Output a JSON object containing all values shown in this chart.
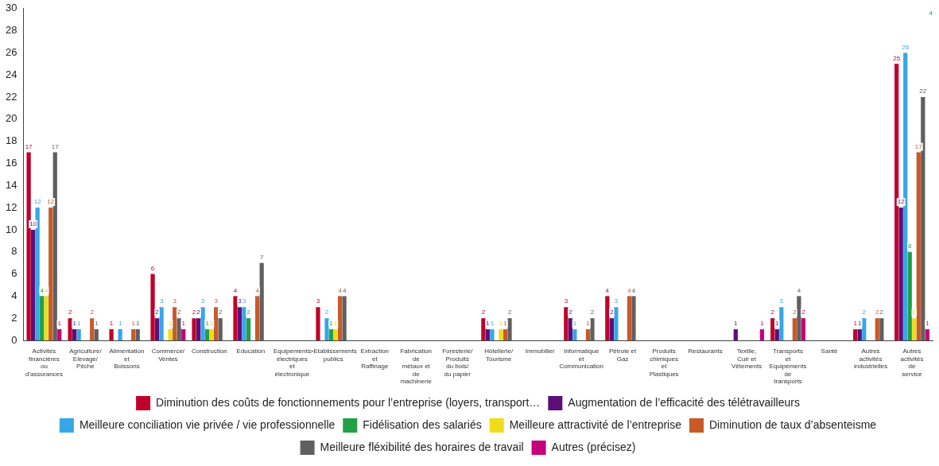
{
  "chart_data": {
    "type": "bar",
    "categories": [
      "Activités financières ou d’assurances",
      "Agriculture/ Elevage/ Pêche",
      "Alimentation et Boissons",
      "Commerce/ Ventes",
      "Construction",
      "Education",
      "Equipements électriques et électronique",
      ">Etablissements publics",
      "Extraction et Raffinage",
      "Fabrication de métaux et de machinerie",
      "Foresterie/ Produits du bois/ du papier",
      "Hôtellerie/ Tourisme",
      "Immobilier",
      "Informatique et Communication",
      "Pétrole et Gaz",
      "Produits chimiques et Plastiques",
      "Restaurants",
      "Textile, Cuir et Vêtements",
      "Transports et Equipements de transports",
      "Santé",
      "Autres activités industrielles",
      "Autres activités de service"
    ],
    "series": [
      {
        "name": "Diminution des coûts de fonctionnements pour l’entreprise (loyers, transport…",
        "color": "#c0002a",
        "values": [
          17,
          2,
          1,
          6,
          2,
          4,
          null,
          3,
          null,
          null,
          null,
          2,
          null,
          3,
          4,
          null,
          null,
          null,
          2,
          null,
          1,
          25
        ]
      },
      {
        "name": "Augmentation de l’efficacité des télétravailleurs",
        "color": "#5c0f7a",
        "values": [
          10,
          1,
          null,
          2,
          2,
          3,
          null,
          null,
          null,
          null,
          null,
          1,
          null,
          2,
          2,
          null,
          null,
          1,
          1,
          null,
          1,
          12
        ]
      },
      {
        "name": "Meilleure conciliation vie privée / vie professionnelle",
        "color": "#35a7e8",
        "values": [
          12,
          1,
          1,
          3,
          3,
          3,
          null,
          2,
          null,
          null,
          null,
          1,
          null,
          1,
          3,
          null,
          null,
          null,
          3,
          null,
          2,
          26
        ]
      },
      {
        "name": "Fidélisation des salariés",
        "color": "#23a047",
        "values": [
          4,
          null,
          null,
          null,
          1,
          2,
          null,
          1,
          null,
          null,
          null,
          null,
          null,
          null,
          null,
          null,
          null,
          null,
          null,
          null,
          null,
          8
        ]
      },
      {
        "name": "Meilleure attractivité de l’entreprise",
        "color": "#f0dc18",
        "values": [
          4,
          null,
          null,
          1,
          1,
          null,
          null,
          1,
          null,
          null,
          null,
          1,
          null,
          null,
          null,
          null,
          null,
          null,
          null,
          null,
          null,
          2
        ]
      },
      {
        "name": "Diminution de taux d’absenteisme",
        "color": "#c85a2a",
        "values": [
          12,
          2,
          1,
          3,
          3,
          4,
          null,
          4,
          null,
          null,
          null,
          1,
          null,
          1,
          4,
          null,
          null,
          null,
          2,
          null,
          2,
          17
        ]
      },
      {
        "name": "Meilleure fléxibilité des horaires de travail",
        "color": "#606060",
        "values": [
          17,
          1,
          1,
          2,
          2,
          7,
          null,
          4,
          null,
          null,
          null,
          2,
          null,
          2,
          4,
          null,
          null,
          null,
          4,
          null,
          2,
          22
        ]
      },
      {
        "name": "Autres (précisez)",
        "color": "#c4007a",
        "values": [
          1,
          null,
          null,
          1,
          null,
          null,
          null,
          null,
          null,
          null,
          null,
          null,
          null,
          null,
          null,
          null,
          null,
          1,
          2,
          null,
          null,
          1
        ]
      }
    ],
    "annotations": [
      "4"
    ],
    "ylim": [
      0,
      30
    ],
    "yticks": [
      0,
      2,
      4,
      6,
      8,
      10,
      12,
      14,
      16,
      18,
      20,
      22,
      24,
      26,
      28,
      30
    ],
    "grid": false,
    "legend": "bottom",
    "data_labels": true
  }
}
